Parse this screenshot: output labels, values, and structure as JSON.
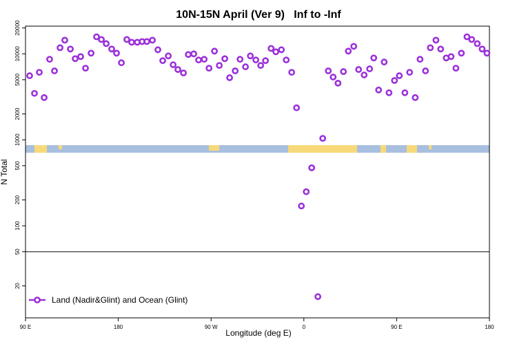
{
  "chart_data": {
    "type": "scatter",
    "title": "10N-15N April (Ver 9)   Inf to -Inf",
    "xlabel": "Longitude (deg E)",
    "ylabel": "N Total",
    "log_y": true,
    "legend": "lower left",
    "reference_line": 50,
    "xlim": [
      90,
      540
    ],
    "xticks": [
      {
        "value": 90,
        "label": "90 E"
      },
      {
        "value": 180,
        "label": "180"
      },
      {
        "value": 270,
        "label": "90 W"
      },
      {
        "value": 360,
        "label": "0"
      },
      {
        "value": 450,
        "label": "90 E"
      },
      {
        "value": 540,
        "label": "180"
      }
    ],
    "ylim": [
      8.5,
      21000
    ],
    "yticks": [
      20,
      50,
      100,
      200,
      500,
      1000,
      2000,
      5000,
      10000,
      20000
    ],
    "series": [
      {
        "name": "Land (Nadir&Glint) and Ocean (Glint)",
        "color": "#9b30d9",
        "x": [
          94.0,
          98.7,
          103.4,
          108.1,
          113.4,
          118.1,
          123.5,
          128.1,
          133.5,
          138.2,
          143.5,
          148.2,
          153.6,
          158.9,
          163.6,
          168.3,
          173.6,
          178.3,
          183.0,
          188.3,
          193.0,
          198.4,
          203.1,
          207.7,
          213.1,
          218.4,
          223.1,
          228.5,
          233.2,
          237.8,
          243.2,
          247.9,
          253.2,
          257.9,
          263.3,
          268.0,
          273.3,
          278.0,
          283.3,
          288.0,
          293.4,
          298.1,
          303.4,
          308.1,
          313.4,
          318.1,
          322.8,
          328.2,
          332.8,
          338.2,
          342.9,
          348.2,
          352.9,
          357.6,
          362.3,
          367.6,
          373.6,
          378.3,
          383.7,
          388.4,
          393.1,
          398.4,
          403.1,
          408.4,
          413.1,
          418.5,
          423.8,
          427.8,
          432.5,
          437.9,
          442.6,
          447.9,
          452.6,
          458.0,
          462.6,
          468.0,
          472.7,
          478.0,
          482.7,
          488.1,
          492.7,
          498.1,
          502.8,
          507.5,
          512.8,
          518.2,
          522.8,
          528.2,
          532.9,
          537.6
        ],
        "values": [
          5570,
          3470,
          6100,
          3100,
          8640,
          6340,
          11780,
          14420,
          11380,
          8790,
          9290,
          6810,
          10190,
          15780,
          14690,
          13150,
          11380,
          10190,
          7880,
          14690,
          13640,
          13640,
          13900,
          13900,
          14420,
          11160,
          8330,
          9460,
          7470,
          6570,
          6000,
          9820,
          10000,
          8490,
          8640,
          6810,
          10760,
          7330,
          8790,
          5280,
          6340,
          8640,
          7070,
          9460,
          8490,
          7330,
          8330,
          11570,
          10570,
          11160,
          8490,
          6100,
          2360,
          170,
          249,
          473,
          15,
          1040,
          6340,
          5370,
          4560,
          6220,
          10760,
          12230,
          6570,
          5680,
          6690,
          8960,
          3800,
          8030,
          3530,
          4900,
          5570,
          3530,
          6100,
          3100,
          8640,
          6340,
          11780,
          14420,
          11380,
          8960,
          9290,
          6810,
          10190,
          15780,
          14690,
          13150,
          11380,
          10190
        ]
      }
    ]
  }
}
